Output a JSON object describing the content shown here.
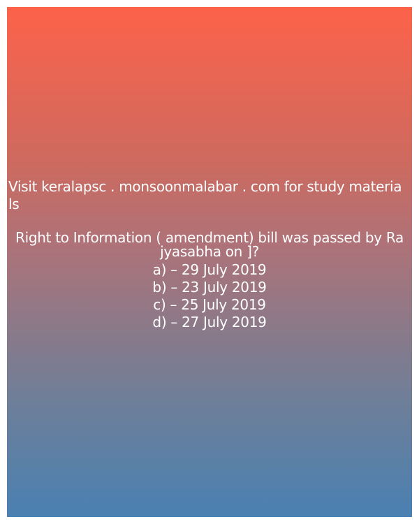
{
  "promo": {
    "line1": "Visit keralapsc . monsoonmalabar . com for study materia",
    "line2": "ls"
  },
  "question": {
    "line1": "Right to Information ( amendment) bill was passed by Ra",
    "line2": "jyasabha on ]?"
  },
  "options": [
    "a) – 29 July 2019",
    "b) – 23 July 2019",
    "c) – 25 July 2019",
    "d) – 27 July 2019"
  ],
  "colors": {
    "gradient_top": "#fd624a",
    "gradient_bottom": "#4a80b2",
    "text": "#ffffff"
  }
}
